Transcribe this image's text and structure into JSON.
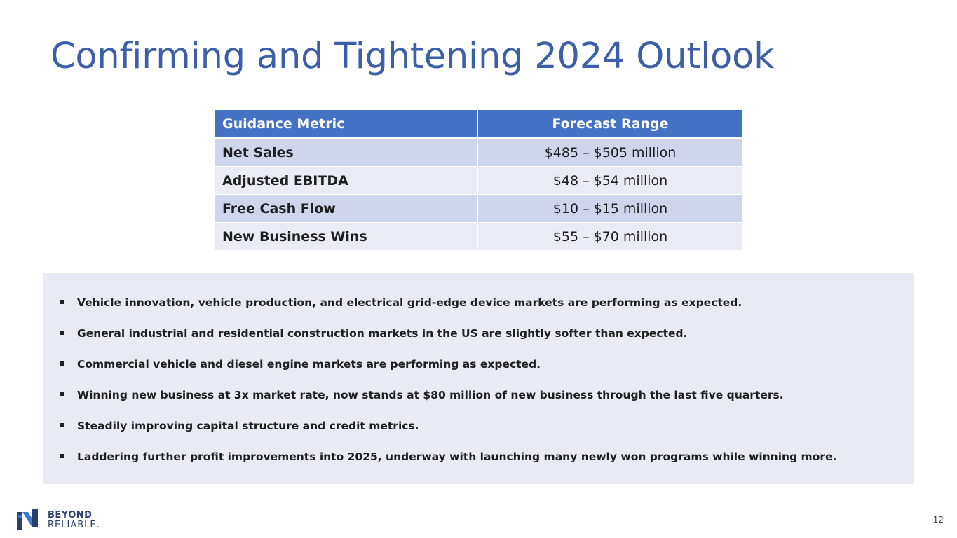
{
  "slide": {
    "title": "Confirming and Tightening 2024 Outlook",
    "page_number": "12"
  },
  "table": {
    "headers": [
      "Guidance Metric",
      "Forecast Range"
    ],
    "rows": [
      {
        "metric": "Net Sales",
        "range": "$485 – $505 million"
      },
      {
        "metric": "Adjusted EBITDA",
        "range": "$48 – $54 million"
      },
      {
        "metric": "Free Cash Flow",
        "range": "$10 – $15 million"
      },
      {
        "metric": "New Business Wins",
        "range": "$55 – $70 million"
      }
    ]
  },
  "bullets": [
    "Vehicle innovation, vehicle production, and electrical grid-edge device markets are performing as expected.",
    "General industrial and residential construction markets in the US are slightly softer than expected.",
    "Commercial vehicle and diesel engine markets are performing as expected.",
    "Winning new business at 3x market rate, now stands at $80 million of new business through the last five quarters.",
    "Steadily improving capital structure and credit metrics.",
    "Laddering further profit improvements into 2025, underway with launching many newly won programs while winning more."
  ],
  "logo": {
    "line1": "BEYOND",
    "line2": "RELIABLE.",
    "icon": "stylized-n-logo-icon"
  },
  "colors": {
    "title": "#3d5ea8",
    "table_header": "#4472c4",
    "row_dark": "#cfd5ea",
    "row_light": "#e9ebf5",
    "panel": "#e8eaf4"
  }
}
